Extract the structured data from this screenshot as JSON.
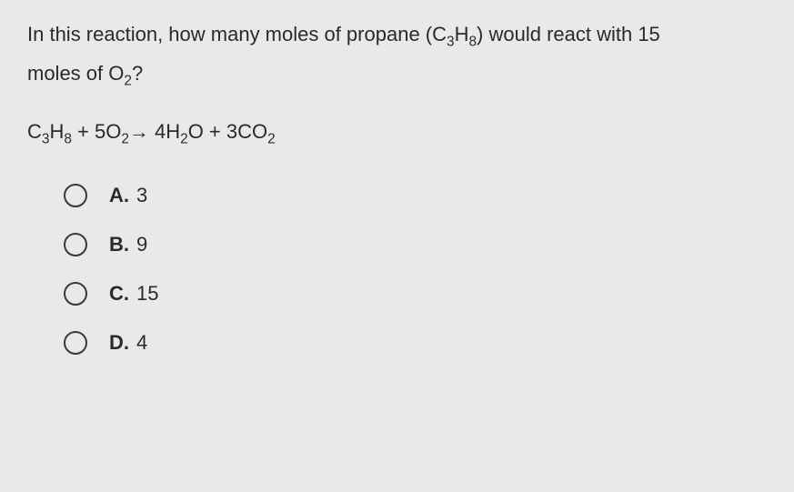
{
  "question": {
    "line1_pre": "In this reaction, how many moles of propane (C",
    "line1_sub1": "3",
    "line1_mid": "H",
    "line1_sub2": "8",
    "line1_post": ") would react with 15",
    "line2_pre": "moles of O",
    "line2_sub": "2",
    "line2_post": "?"
  },
  "equation": {
    "c": "C",
    "c_sub": "3",
    "h": "H",
    "h_sub": "8",
    "plus1": " + 5O",
    "o2_sub": "2",
    "arrow": " → 4H",
    "h2o_sub1": "2",
    "h2o_o": "O + 3CO",
    "co2_sub": "2"
  },
  "options": {
    "a": {
      "label": "A.",
      "value": "3"
    },
    "b": {
      "label": "B.",
      "value": "9"
    },
    "c": {
      "label": "C.",
      "value": "15"
    },
    "d": {
      "label": "D.",
      "value": "4"
    }
  },
  "styling": {
    "background_color": "#e8e9eb",
    "text_color": "#2a2a2a",
    "radio_border_color": "#3a3a3a",
    "font_size_question": 22,
    "font_size_options": 22,
    "radio_size": 26
  }
}
